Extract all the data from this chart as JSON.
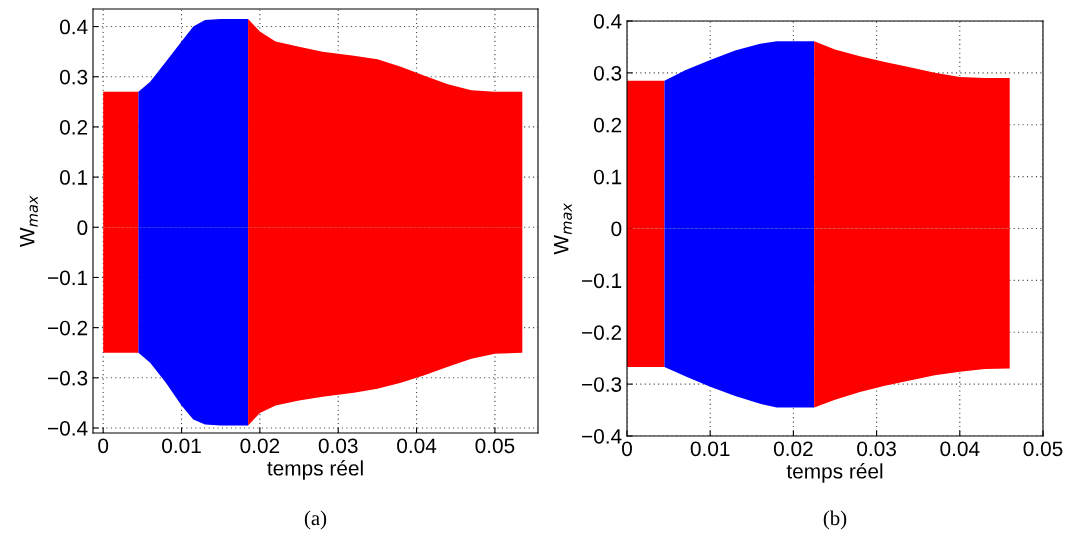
{
  "chart_data": [
    {
      "type": "area",
      "xlabel": "temps réel",
      "ylabel": "W$_{max}$",
      "xlim": [
        -0.0013,
        0.0555
      ],
      "ylim": [
        -0.41,
        0.435
      ],
      "xticks": [
        0,
        0.01,
        0.02,
        0.03,
        0.04,
        0.05
      ],
      "yticks": [
        -0.4,
        -0.3,
        -0.2,
        -0.1,
        0,
        0.1,
        0.2,
        0.3,
        0.4
      ],
      "grid": true,
      "annotations": [
        "(a)"
      ],
      "series": [
        {
          "color": "#ff0000",
          "x": [
            0,
            0.0045
          ],
          "values": [
            0.27,
            0.27
          ]
        },
        {
          "color": "#ff0000",
          "x": [
            0,
            0.0045
          ],
          "values": [
            -0.25,
            -0.25
          ]
        },
        {
          "color": "#0000ff",
          "x": [
            0.0045,
            0.006,
            0.008,
            0.01,
            0.0115,
            0.013,
            0.015,
            0.0185
          ],
          "values": [
            0.27,
            0.29,
            0.33,
            0.37,
            0.4,
            0.413,
            0.415,
            0.415
          ]
        },
        {
          "color": "#0000ff",
          "x": [
            0.0045,
            0.006,
            0.008,
            0.01,
            0.0115,
            0.013,
            0.015,
            0.0185
          ],
          "values": [
            -0.25,
            -0.27,
            -0.31,
            -0.355,
            -0.383,
            -0.393,
            -0.395,
            -0.395
          ]
        },
        {
          "color": "#ff0000",
          "x": [
            0.0185,
            0.02,
            0.022,
            0.025,
            0.028,
            0.032,
            0.035,
            0.038,
            0.041,
            0.044,
            0.047,
            0.05,
            0.0535
          ],
          "values": [
            0.415,
            0.39,
            0.37,
            0.36,
            0.35,
            0.342,
            0.335,
            0.32,
            0.302,
            0.285,
            0.273,
            0.27,
            0.27
          ]
        },
        {
          "color": "#ff0000",
          "x": [
            0.0185,
            0.02,
            0.022,
            0.025,
            0.028,
            0.032,
            0.035,
            0.038,
            0.041,
            0.044,
            0.047,
            0.05,
            0.0535
          ],
          "values": [
            -0.395,
            -0.37,
            -0.355,
            -0.345,
            -0.338,
            -0.33,
            -0.322,
            -0.31,
            -0.295,
            -0.278,
            -0.262,
            -0.252,
            -0.25
          ]
        }
      ]
    },
    {
      "type": "area",
      "xlabel": "temps réel",
      "ylabel": "W$_{max}$",
      "xlim": [
        0,
        0.05
      ],
      "ylim": [
        -0.4,
        0.4
      ],
      "xticks": [
        0,
        0.01,
        0.02,
        0.03,
        0.04,
        0.05
      ],
      "yticks": [
        -0.4,
        -0.3,
        -0.2,
        -0.1,
        0,
        0.1,
        0.2,
        0.3,
        0.4
      ],
      "grid": true,
      "annotations": [
        "(b)"
      ],
      "series": [
        {
          "color": "#ff0000",
          "x": [
            0,
            0.0045
          ],
          "values": [
            0.285,
            0.285
          ]
        },
        {
          "color": "#ff0000",
          "x": [
            0,
            0.0045
          ],
          "values": [
            -0.267,
            -0.267
          ]
        },
        {
          "color": "#0000ff",
          "x": [
            0.0045,
            0.007,
            0.01,
            0.013,
            0.016,
            0.018,
            0.0225
          ],
          "values": [
            0.285,
            0.305,
            0.325,
            0.343,
            0.356,
            0.361,
            0.361
          ]
        },
        {
          "color": "#0000ff",
          "x": [
            0.0045,
            0.007,
            0.01,
            0.013,
            0.016,
            0.018,
            0.0225
          ],
          "values": [
            -0.267,
            -0.285,
            -0.305,
            -0.323,
            -0.338,
            -0.345,
            -0.345
          ]
        },
        {
          "color": "#ff0000",
          "x": [
            0.0225,
            0.025,
            0.028,
            0.031,
            0.034,
            0.037,
            0.04,
            0.043,
            0.046
          ],
          "values": [
            0.361,
            0.345,
            0.332,
            0.321,
            0.311,
            0.3,
            0.292,
            0.29,
            0.29
          ]
        },
        {
          "color": "#ff0000",
          "x": [
            0.0225,
            0.025,
            0.028,
            0.031,
            0.034,
            0.037,
            0.04,
            0.043,
            0.046
          ],
          "values": [
            -0.345,
            -0.33,
            -0.315,
            -0.303,
            -0.293,
            -0.283,
            -0.276,
            -0.271,
            -0.27
          ]
        }
      ]
    }
  ]
}
